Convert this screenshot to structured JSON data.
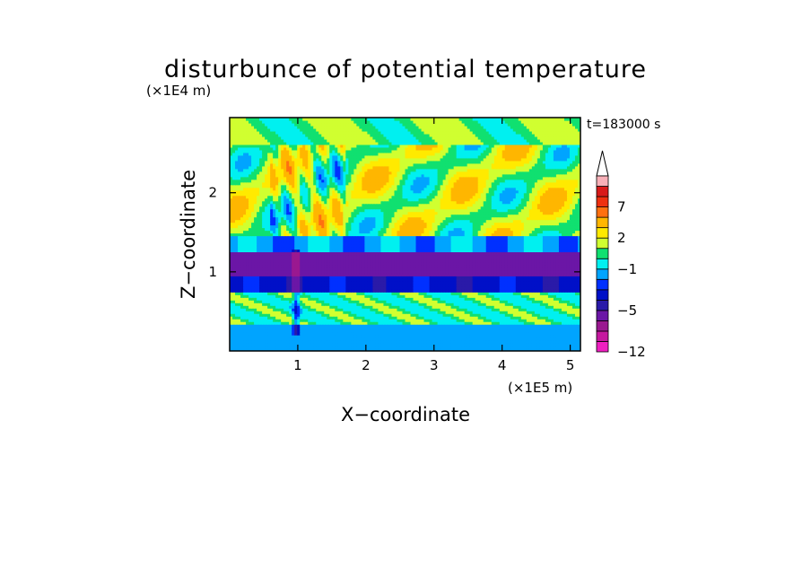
{
  "chart_data": {
    "type": "heatmap",
    "title": "disturbunce of potential temperature",
    "time_label": "t=183000 s",
    "xlabel": "X−coordinate",
    "ylabel": "Z−coordinate",
    "x_unit": "(×1E5 m)",
    "y_unit": "(×1E4 m)",
    "xlim": [
      0,
      5.15
    ],
    "ylim": [
      0,
      2.95
    ],
    "xticks": [
      1,
      2,
      3,
      4,
      5
    ],
    "yticks": [
      1,
      2
    ],
    "xtick_labels": [
      "1",
      "2",
      "3",
      "4",
      "5"
    ],
    "ytick_labels": [
      "1",
      "2"
    ],
    "colorbar": {
      "levels": [
        -12,
        -11,
        -9,
        -7,
        -5,
        -4,
        -3,
        -2,
        -1,
        0,
        1,
        2,
        3,
        5,
        7,
        9,
        11
      ],
      "colors": [
        "#ee1fc0",
        "#c5189f",
        "#9a1890",
        "#6b16a6",
        "#2a1aa8",
        "#0010c8",
        "#0030ff",
        "#00a4ff",
        "#00f0f0",
        "#10e070",
        "#d0ff30",
        "#ffea00",
        "#ffb600",
        "#ff7010",
        "#ee3010",
        "#d81a1a",
        "#f8b0b8"
      ],
      "tick_values": [
        7,
        2,
        -1,
        -5,
        -12
      ],
      "tick_labels": [
        "7",
        "2",
        "−1",
        "−5",
        "−12"
      ],
      "extend": "max"
    },
    "field_description_bands": [
      {
        "z_range": [
          0.0,
          0.35
        ],
        "value": -1.5
      },
      {
        "z_range": [
          0.35,
          0.75
        ],
        "value": 0.8
      },
      {
        "z_range": [
          0.75,
          0.95
        ],
        "value": -3.5
      },
      {
        "z_range": [
          0.95,
          1.25
        ],
        "value": -6
      },
      {
        "z_range": [
          1.25,
          1.45
        ],
        "value": -1.5
      },
      {
        "z_range": [
          1.45,
          2.95
        ],
        "value": 1.5
      }
    ]
  }
}
